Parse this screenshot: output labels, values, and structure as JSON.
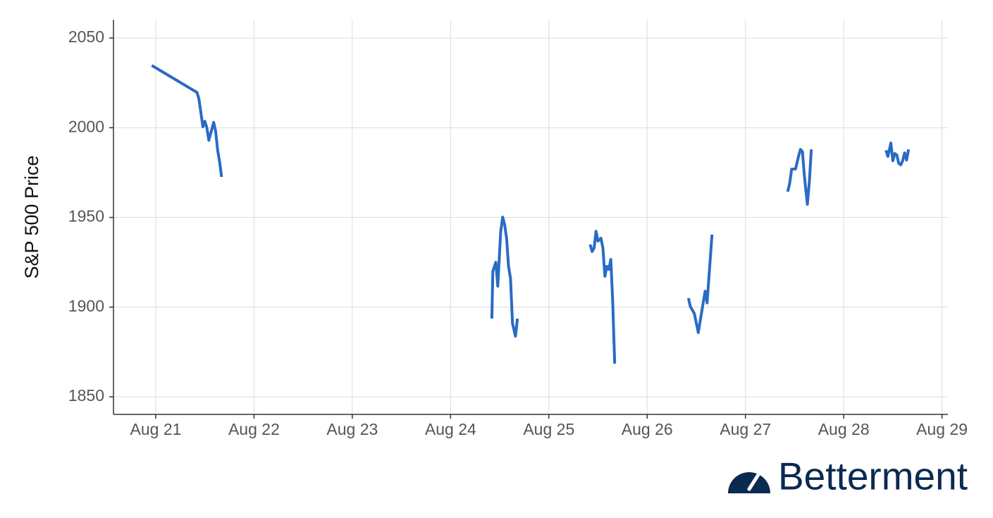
{
  "chart_data": {
    "type": "line",
    "ylabel": "S&P 500 Price",
    "x": [
      20.96,
      21.42,
      21.44,
      21.48,
      21.5,
      21.52,
      21.54,
      21.59,
      21.61,
      21.63,
      21.65,
      21.67,
      null,
      24.42,
      24.43,
      24.46,
      24.48,
      24.51,
      24.53,
      24.55,
      24.57,
      24.59,
      24.61,
      24.63,
      24.66,
      24.68,
      null,
      25.42,
      25.44,
      25.46,
      25.48,
      25.5,
      25.53,
      25.55,
      25.57,
      25.59,
      25.61,
      25.63,
      25.65,
      25.67,
      null,
      26.42,
      26.44,
      26.48,
      26.52,
      26.54,
      26.59,
      26.61,
      26.66,
      null,
      27.43,
      27.45,
      27.47,
      27.51,
      27.54,
      27.56,
      27.58,
      27.6,
      27.63,
      27.65,
      27.67,
      null,
      28.43,
      28.45,
      28.48,
      28.5,
      28.52,
      28.54,
      28.56,
      28.58,
      28.6,
      28.62,
      28.64,
      28.66
    ],
    "series": [
      {
        "name": "S&P 500",
        "color": "#2a6bc4",
        "values": [
          2034.7,
          2019.7,
          2016,
          2000.5,
          2003.6,
          2000,
          1993,
          2003,
          1998,
          1987.5,
          1981,
          1972.6,
          null,
          1893.6,
          1920,
          1925,
          1911.7,
          1942.3,
          1950.2,
          1946,
          1938.4,
          1922.7,
          1916,
          1891,
          1883.8,
          1893.6,
          null,
          1934.9,
          1931,
          1932.9,
          1942.3,
          1936.8,
          1938.4,
          1932.9,
          1917.2,
          1922.7,
          1921.1,
          1926.6,
          1903,
          1868.5,
          null,
          1905,
          1900.3,
          1896.4,
          1885.8,
          1892.4,
          1908.9,
          1902.3,
          1940.4,
          null,
          1964.3,
          1969,
          1976.9,
          1977,
          1984,
          1987.9,
          1986.7,
          1973,
          1957.3,
          1969.8,
          1987.9,
          null,
          1987.5,
          1984,
          1991.5,
          1981.6,
          1985.6,
          1984.8,
          1980.1,
          1979.3,
          1981.6,
          1986,
          1982,
          1987.9
        ]
      }
    ],
    "xlim": [
      20.57,
      29.06
    ],
    "xticks": [
      {
        "value": 21,
        "label": "Aug 21"
      },
      {
        "value": 22,
        "label": "Aug 22"
      },
      {
        "value": 23,
        "label": "Aug 23"
      },
      {
        "value": 24,
        "label": "Aug 24"
      },
      {
        "value": 25,
        "label": "Aug 25"
      },
      {
        "value": 26,
        "label": "Aug 26"
      },
      {
        "value": 27,
        "label": "Aug 27"
      },
      {
        "value": 28,
        "label": "Aug 28"
      },
      {
        "value": 29,
        "label": "Aug 29"
      }
    ],
    "ylim": [
      1840.2,
      2060.2
    ],
    "yticks": [
      1850,
      1900,
      1950,
      2000,
      2050
    ],
    "grid": true
  },
  "brand": "Betterment"
}
